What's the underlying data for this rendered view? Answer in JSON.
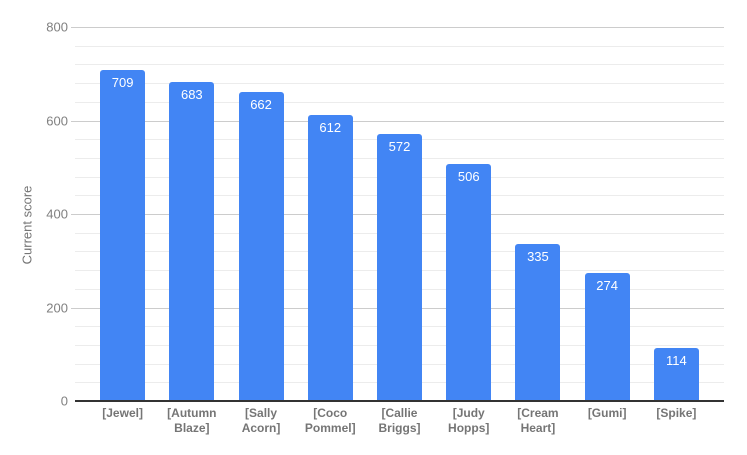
{
  "chart_data": {
    "type": "bar",
    "title": "",
    "xlabel": "",
    "ylabel": "Current score",
    "categories": [
      "[Jewel]",
      "[Autumn Blaze]",
      "[Sally Acorn]",
      "[Coco Pommel]",
      "[Callie Briggs]",
      "[Judy Hopps]",
      "[Cream Heart]",
      "[Gumi]",
      "[Spike]"
    ],
    "values": [
      709,
      683,
      662,
      612,
      572,
      506,
      335,
      274,
      114
    ],
    "ylim": [
      0,
      800
    ],
    "y_major_ticks": [
      0,
      200,
      400,
      600,
      800
    ],
    "y_minor_step": 40,
    "grid": true,
    "legend_position": "none",
    "colors": {
      "bar": "#4285f4",
      "value_label": "#ffffff",
      "axis_title": "#757575",
      "tick_label": "#808080",
      "x_label": "#757575",
      "gridline_major": "#cccccc",
      "gridline_minor": "#ececec",
      "baseline": "#333333",
      "background": "#ffffff"
    }
  }
}
